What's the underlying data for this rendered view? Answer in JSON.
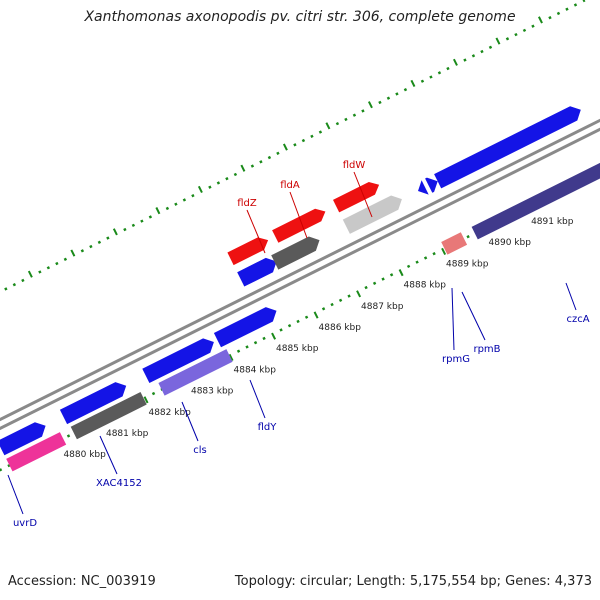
{
  "title": "Xanthomonas axonopodis pv. citri str. 306, complete genome",
  "footer": {
    "accession": "Accession: NC_003919",
    "summary": "Topology: circular; Length: 5,175,554 bp; Genes: 4,373"
  },
  "colors": {
    "backbone": "#8a8a8a",
    "tick": "#1a8a1a",
    "label_red": "#cc0000",
    "label_blue": "#0000aa",
    "blue": "#1414e6",
    "gray_dark": "#5a5a5a",
    "gray_light": "#c8c8c8",
    "red": "#ee1111",
    "pink": "#ee3399",
    "lavender": "#7a66dd",
    "navy": "#403a8c",
    "salmon": "#e87878"
  },
  "kbp_ticks": [
    "4880 kbp",
    "4881 kbp",
    "4882 kbp",
    "4883 kbp",
    "4884 kbp",
    "4885 kbp",
    "4886 kbp",
    "4887 kbp",
    "4888 kbp",
    "4889 kbp",
    "4890 kbp",
    "4891 kbp"
  ],
  "features": [
    {
      "name": "fldZ",
      "strand": "top"
    },
    {
      "name": "fldA",
      "strand": "top"
    },
    {
      "name": "fldW",
      "strand": "top"
    },
    {
      "name": "uvrD",
      "strand": "bottom"
    },
    {
      "name": "XAC4152",
      "strand": "bottom"
    },
    {
      "name": "cls",
      "strand": "bottom"
    },
    {
      "name": "fldY",
      "strand": "bottom"
    },
    {
      "name": "rpmG",
      "strand": "bottom"
    },
    {
      "name": "rpmB",
      "strand": "bottom"
    },
    {
      "name": "czcA",
      "strand": "bottom"
    }
  ]
}
